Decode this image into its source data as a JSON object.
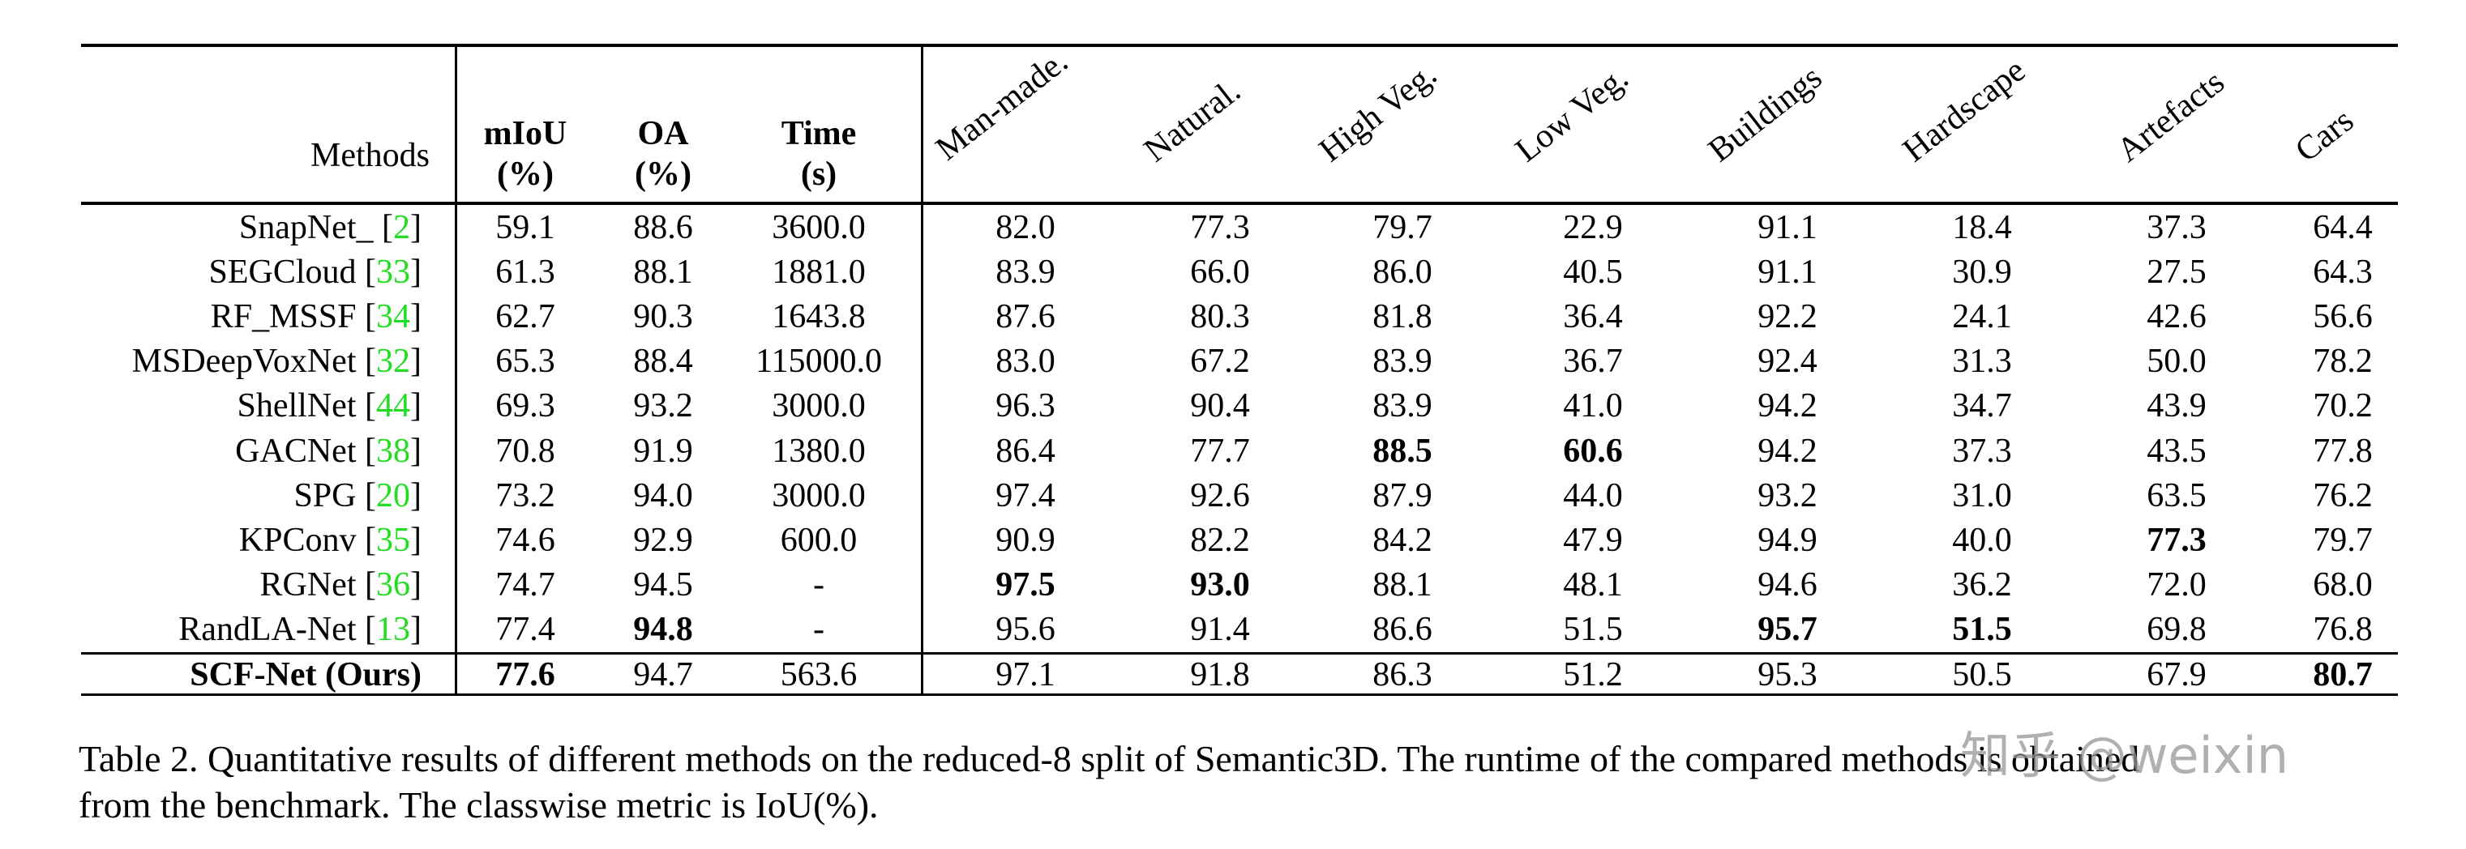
{
  "table": {
    "header": {
      "methods": "Methods",
      "mIoU": [
        "mIoU",
        "(%)"
      ],
      "OA": [
        "OA",
        "(%)"
      ],
      "time": [
        "Time",
        "(s)"
      ],
      "classes": [
        "Man-made.",
        "Natural.",
        "High Veg.",
        "Low Veg.",
        "Buildings",
        "Hardscape",
        "Artefacts",
        "Cars"
      ]
    },
    "rows": [
      {
        "name": "SnapNet_",
        "cite": "2",
        "mIoU": "59.1",
        "OA": "88.6",
        "time": "3600.0",
        "c": [
          "82.0",
          "77.3",
          "79.7",
          "22.9",
          "91.1",
          "18.4",
          "37.3",
          "64.4"
        ],
        "bold": []
      },
      {
        "name": "SEGCloud",
        "cite": "33",
        "mIoU": "61.3",
        "OA": "88.1",
        "time": "1881.0",
        "c": [
          "83.9",
          "66.0",
          "86.0",
          "40.5",
          "91.1",
          "30.9",
          "27.5",
          "64.3"
        ],
        "bold": []
      },
      {
        "name": "RF_MSSF",
        "cite": "34",
        "mIoU": "62.7",
        "OA": "90.3",
        "time": "1643.8",
        "c": [
          "87.6",
          "80.3",
          "81.8",
          "36.4",
          "92.2",
          "24.1",
          "42.6",
          "56.6"
        ],
        "bold": []
      },
      {
        "name": "MSDeepVoxNet",
        "cite": "32",
        "mIoU": "65.3",
        "OA": "88.4",
        "time": "115000.0",
        "c": [
          "83.0",
          "67.2",
          "83.9",
          "36.7",
          "92.4",
          "31.3",
          "50.0",
          "78.2"
        ],
        "bold": []
      },
      {
        "name": "ShellNet",
        "cite": "44",
        "mIoU": "69.3",
        "OA": "93.2",
        "time": "3000.0",
        "c": [
          "96.3",
          "90.4",
          "83.9",
          "41.0",
          "94.2",
          "34.7",
          "43.9",
          "70.2"
        ],
        "bold": []
      },
      {
        "name": "GACNet",
        "cite": "38",
        "mIoU": "70.8",
        "OA": "91.9",
        "time": "1380.0",
        "c": [
          "86.4",
          "77.7",
          "88.5",
          "60.6",
          "94.2",
          "37.3",
          "43.5",
          "77.8"
        ],
        "bold": [
          "c2",
          "c3"
        ]
      },
      {
        "name": "SPG",
        "cite": "20",
        "mIoU": "73.2",
        "OA": "94.0",
        "time": "3000.0",
        "c": [
          "97.4",
          "92.6",
          "87.9",
          "44.0",
          "93.2",
          "31.0",
          "63.5",
          "76.2"
        ],
        "bold": []
      },
      {
        "name": "KPConv",
        "cite": "35",
        "mIoU": "74.6",
        "OA": "92.9",
        "time": "600.0",
        "c": [
          "90.9",
          "82.2",
          "84.2",
          "47.9",
          "94.9",
          "40.0",
          "77.3",
          "79.7"
        ],
        "bold": [
          "c6"
        ]
      },
      {
        "name": "RGNet",
        "cite": "36",
        "mIoU": "74.7",
        "OA": "94.5",
        "time": "-",
        "c": [
          "97.5",
          "93.0",
          "88.1",
          "48.1",
          "94.6",
          "36.2",
          "72.0",
          "68.0"
        ],
        "bold": [
          "c0",
          "c1"
        ]
      },
      {
        "name": "RandLA-Net",
        "cite": "13",
        "mIoU": "77.4",
        "OA": "94.8",
        "time": "-",
        "c": [
          "95.6",
          "91.4",
          "86.6",
          "51.5",
          "95.7",
          "51.5",
          "69.8",
          "76.8"
        ],
        "bold": [
          "OA",
          "c4",
          "c5"
        ]
      }
    ],
    "ours": {
      "name": "SCF-Net (Ours)",
      "mIoU": "77.6",
      "OA": "94.7",
      "time": "563.6",
      "c": [
        "97.1",
        "91.8",
        "86.3",
        "51.2",
        "95.3",
        "50.5",
        "67.9",
        "80.7"
      ],
      "bold": [
        "name",
        "mIoU",
        "c7"
      ]
    }
  },
  "caption": {
    "line1": "Table 2. Quantitative results of different methods on the reduced-8 split of Semantic3D. The runtime of the compared methods is obtained",
    "line2": "from the benchmark. The classwise metric is IoU(%)."
  },
  "watermark": "知乎 @weixin",
  "colors": {
    "citation": "#22dd22",
    "rule": "#000000",
    "watermark": "#969696"
  },
  "chart_data": {
    "type": "table",
    "title": "Table 2. Quantitative results of different methods on the reduced-8 split of Semantic3D.",
    "columns": [
      "Methods",
      "mIoU (%)",
      "OA (%)",
      "Time (s)",
      "Man-made.",
      "Natural.",
      "High Veg.",
      "Low Veg.",
      "Buildings",
      "Hardscape",
      "Artefacts",
      "Cars"
    ],
    "rows": [
      [
        "SnapNet_ [2]",
        59.1,
        88.6,
        3600.0,
        82.0,
        77.3,
        79.7,
        22.9,
        91.1,
        18.4,
        37.3,
        64.4
      ],
      [
        "SEGCloud [33]",
        61.3,
        88.1,
        1881.0,
        83.9,
        66.0,
        86.0,
        40.5,
        91.1,
        30.9,
        27.5,
        64.3
      ],
      [
        "RF_MSSF [34]",
        62.7,
        90.3,
        1643.8,
        87.6,
        80.3,
        81.8,
        36.4,
        92.2,
        24.1,
        42.6,
        56.6
      ],
      [
        "MSDeepVoxNet [32]",
        65.3,
        88.4,
        115000.0,
        83.0,
        67.2,
        83.9,
        36.7,
        92.4,
        31.3,
        50.0,
        78.2
      ],
      [
        "ShellNet [44]",
        69.3,
        93.2,
        3000.0,
        96.3,
        90.4,
        83.9,
        41.0,
        94.2,
        34.7,
        43.9,
        70.2
      ],
      [
        "GACNet [38]",
        70.8,
        91.9,
        1380.0,
        86.4,
        77.7,
        88.5,
        60.6,
        94.2,
        37.3,
        43.5,
        77.8
      ],
      [
        "SPG [20]",
        73.2,
        94.0,
        3000.0,
        97.4,
        92.6,
        87.9,
        44.0,
        93.2,
        31.0,
        63.5,
        76.2
      ],
      [
        "KPConv [35]",
        74.6,
        92.9,
        600.0,
        90.9,
        82.2,
        84.2,
        47.9,
        94.9,
        40.0,
        77.3,
        79.7
      ],
      [
        "RGNet [36]",
        74.7,
        94.5,
        null,
        97.5,
        93.0,
        88.1,
        48.1,
        94.6,
        36.2,
        72.0,
        68.0
      ],
      [
        "RandLA-Net [13]",
        77.4,
        94.8,
        null,
        95.6,
        91.4,
        86.6,
        51.5,
        95.7,
        51.5,
        69.8,
        76.8
      ],
      [
        "SCF-Net (Ours)",
        77.6,
        94.7,
        563.6,
        97.1,
        91.8,
        86.3,
        51.2,
        95.3,
        50.5,
        67.9,
        80.7
      ]
    ]
  }
}
